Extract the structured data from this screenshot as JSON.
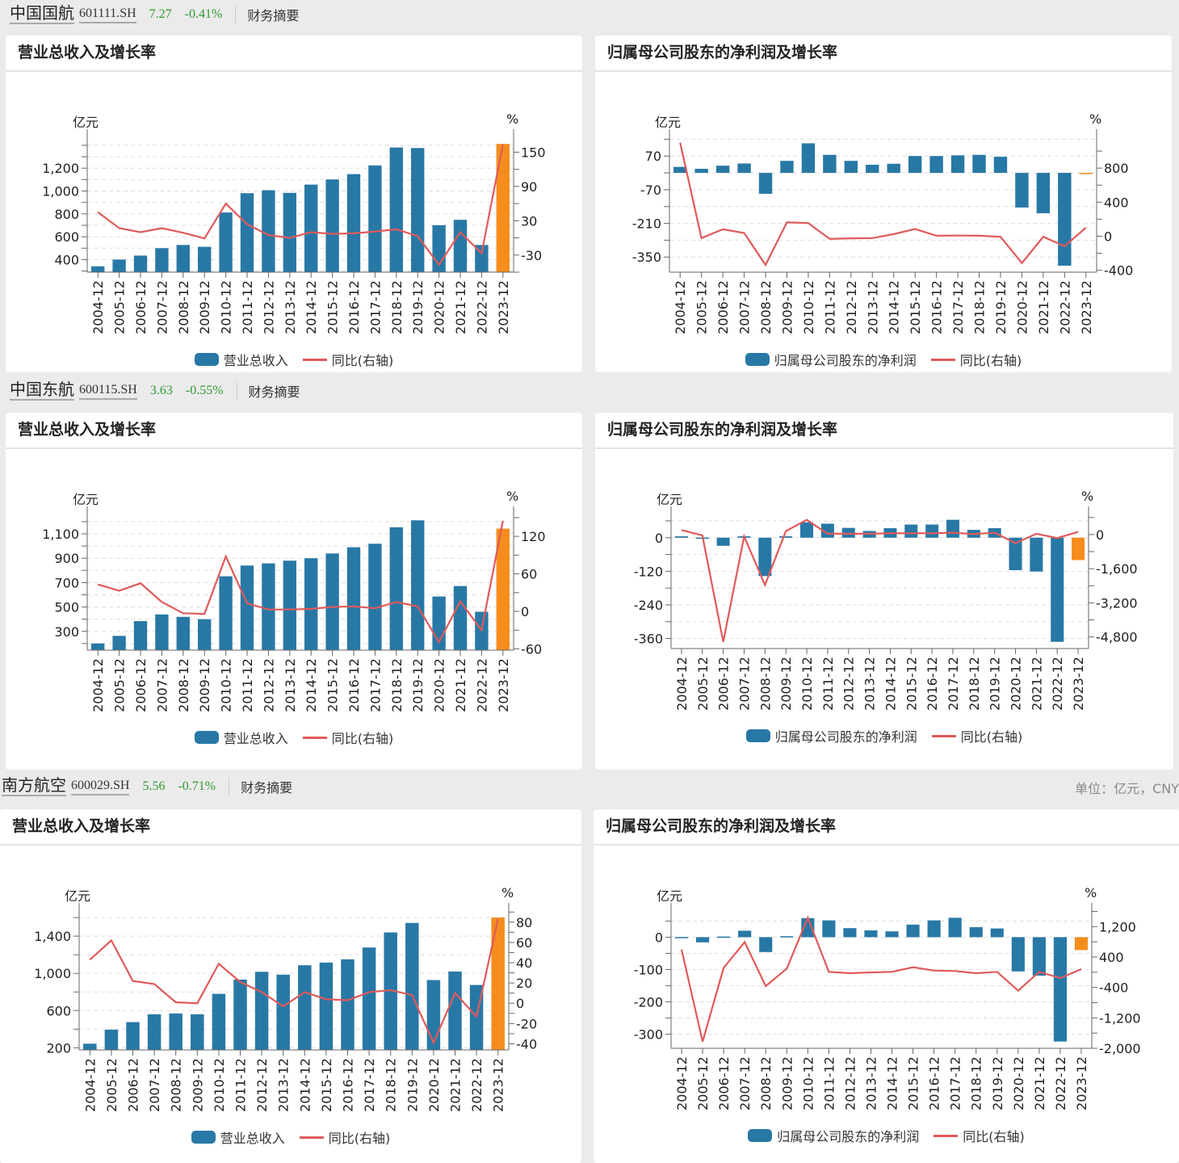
{
  "colors": {
    "bar": "#2878a6",
    "highlight": "#f58d1e",
    "line": "#e05a5a",
    "price": "#2e9a2e"
  },
  "unit_note": "单位：亿元，CNY",
  "stocks": [
    {
      "name": "中国国航",
      "code": "601111.SH",
      "price": "7.27",
      "change": "-0.41%",
      "link": "财务摘要"
    },
    {
      "name": "中国东航",
      "code": "600115.SH",
      "price": "3.63",
      "change": "-0.55%",
      "link": "财务摘要"
    },
    {
      "name": "南方航空",
      "code": "600029.SH",
      "price": "5.56",
      "change": "-0.71%",
      "link": "财务摘要"
    }
  ],
  "chart_data": [
    {
      "type": "bar+line",
      "title": "营业总收入及增长率",
      "ylabel": "亿元",
      "y2label": "%",
      "categories": [
        "2004-12",
        "2005-12",
        "2006-12",
        "2007-12",
        "2008-12",
        "2009-12",
        "2010-12",
        "2011-12",
        "2012-12",
        "2013-12",
        "2014-12",
        "2015-12",
        "2016-12",
        "2017-12",
        "2018-12",
        "2019-12",
        "2020-12",
        "2021-12",
        "2022-12",
        "2023-12"
      ],
      "bar_series": {
        "name": "营业总收入",
        "values": [
          341,
          400,
          435,
          500,
          528,
          512,
          812,
          981,
          1007,
          984,
          1056,
          1101,
          1148,
          1224,
          1381,
          1376,
          701,
          748,
          528,
          1412
        ]
      },
      "line_series": {
        "name": "同比(右轴)",
        "values": [
          45,
          17,
          10,
          17,
          9,
          -1,
          60,
          24,
          5,
          0,
          10,
          7,
          8,
          11,
          15,
          3,
          -47,
          10,
          -27,
          164
        ]
      },
      "ylim": [
        290,
        1470
      ],
      "yticks": [
        400,
        600,
        800,
        1000,
        1200
      ],
      "y2lim": [
        -60,
        176
      ],
      "y2ticks": [
        -30,
        30,
        90,
        150
      ],
      "highlight_last": true,
      "bar_base": "axis"
    },
    {
      "type": "bar+line",
      "title": "归属母公司股东的净利润及增长率",
      "ylabel": "亿元",
      "y2label": "%",
      "categories": [
        "2004-12",
        "2005-12",
        "2006-12",
        "2007-12",
        "2008-12",
        "2009-12",
        "2010-12",
        "2011-12",
        "2012-12",
        "2013-12",
        "2014-12",
        "2015-12",
        "2016-12",
        "2017-12",
        "2018-12",
        "2019-12",
        "2020-12",
        "2021-12",
        "2022-12",
        "2023-12"
      ],
      "bar_series": {
        "name": "归属母公司股东的净利润",
        "values": [
          25,
          17,
          30,
          39,
          -87,
          50,
          123,
          75,
          50,
          34,
          38,
          70,
          70,
          73,
          75,
          67,
          -144,
          -168,
          -386,
          -5
        ]
      },
      "line_series": {
        "name": "同比(右轴)",
        "values": [
          1099,
          -22,
          82,
          38,
          -337,
          164,
          154,
          -31,
          -25,
          -22,
          25,
          85,
          6,
          9,
          6,
          -6,
          -315,
          -6,
          -117,
          101
        ]
      },
      "ylim": [
        -413,
        148
      ],
      "yticks": [
        -350,
        -210,
        -70,
        70
      ],
      "y2lim": [
        -422,
        1162
      ],
      "y2ticks": [
        -400,
        0,
        400,
        800
      ],
      "highlight_last": true,
      "bar_base": "zero"
    },
    {
      "type": "bar+line",
      "title": "营业总收入及增长率",
      "ylabel": "亿元",
      "y2label": "%",
      "categories": [
        "2004-12",
        "2005-12",
        "2006-12",
        "2007-12",
        "2008-12",
        "2009-12",
        "2010-12",
        "2011-12",
        "2012-12",
        "2013-12",
        "2014-12",
        "2015-12",
        "2016-12",
        "2017-12",
        "2018-12",
        "2019-12",
        "2020-12",
        "2021-12",
        "2022-12",
        "2023-12"
      ],
      "bar_series": {
        "name": "营业总收入",
        "values": [
          201,
          263,
          384,
          439,
          419,
          400,
          752,
          840,
          858,
          880,
          900,
          939,
          990,
          1019,
          1154,
          1211,
          586,
          672,
          461,
          1143
        ]
      },
      "line_series": {
        "name": "同比(右轴)",
        "values": [
          43,
          33,
          45,
          15,
          -3,
          -4,
          88,
          13,
          3,
          3,
          4,
          7,
          8,
          5,
          15,
          8,
          -49,
          16,
          -30,
          145
        ]
      },
      "ylim": [
        146,
        1259
      ],
      "yticks": [
        300,
        500,
        700,
        900,
        1100
      ],
      "y2lim": [
        -62,
        155
      ],
      "y2ticks": [
        -60,
        0,
        60,
        120
      ],
      "highlight_last": true,
      "bar_base": "axis"
    },
    {
      "type": "bar+line",
      "title": "归属母公司股东的净利润及增长率",
      "ylabel": "亿元",
      "y2label": "%",
      "categories": [
        "2004-12",
        "2005-12",
        "2006-12",
        "2007-12",
        "2008-12",
        "2009-12",
        "2010-12",
        "2011-12",
        "2012-12",
        "2013-12",
        "2014-12",
        "2015-12",
        "2016-12",
        "2017-12",
        "2018-12",
        "2019-12",
        "2020-12",
        "2021-12",
        "2022-12",
        "2023-12"
      ],
      "bar_series": {
        "name": "归属母公司股东的净利润",
        "values": [
          5,
          0.5,
          -29,
          5,
          -137,
          5,
          55,
          50,
          35,
          24,
          34,
          47,
          47,
          64,
          28,
          34,
          -116,
          -121,
          -372,
          -80
        ]
      },
      "line_series": {
        "name": "同比(右轴)",
        "values": [
          214,
          -38,
          -5028,
          -88,
          -2363,
          163,
          691,
          38,
          38,
          38,
          63,
          63,
          63,
          88,
          25,
          88,
          -402,
          38,
          -163,
          126
        ]
      },
      "ylim": [
        -396,
        83
      ],
      "yticks": [
        -360,
        -240,
        -120,
        0
      ],
      "y2lim": [
        -5342,
        943
      ],
      "y2ticks": [
        -4800,
        -3200,
        -1600,
        0
      ],
      "highlight_last": true,
      "bar_base": "zero"
    },
    {
      "type": "bar+line",
      "title": "营业总收入及增长率",
      "ylabel": "亿元",
      "y2label": "%",
      "categories": [
        "2004-12",
        "2005-12",
        "2006-12",
        "2007-12",
        "2008-12",
        "2009-12",
        "2010-12",
        "2011-12",
        "2012-12",
        "2013-12",
        "2014-12",
        "2015-12",
        "2016-12",
        "2017-12",
        "2018-12",
        "2019-12",
        "2020-12",
        "2021-12",
        "2022-12",
        "2023-12"
      ],
      "bar_series": {
        "name": "营业总收入",
        "values": [
          244,
          395,
          476,
          560,
          569,
          560,
          780,
          933,
          1017,
          986,
          1087,
          1116,
          1151,
          1278,
          1440,
          1542,
          928,
          1020,
          875,
          1600
        ]
      },
      "line_series": {
        "name": "同比(右轴)",
        "values": [
          43,
          62,
          22,
          19,
          1,
          0,
          39,
          21,
          11,
          -3,
          11,
          4,
          3,
          11,
          13,
          8,
          -39,
          10,
          -13,
          83
        ]
      },
      "ylim": [
        177,
        1670
      ],
      "yticks": [
        200,
        600,
        1000,
        1400
      ],
      "y2lim": [
        -46,
        91
      ],
      "y2ticks": [
        -40,
        -20,
        0,
        20,
        40,
        60,
        80
      ],
      "highlight_last": true,
      "bar_base": "axis"
    },
    {
      "type": "bar+line",
      "title": "归属母公司股东的净利润及增长率",
      "ylabel": "亿元",
      "y2label": "%",
      "categories": [
        "2004-12",
        "2005-12",
        "2006-12",
        "2007-12",
        "2008-12",
        "2009-12",
        "2010-12",
        "2011-12",
        "2012-12",
        "2013-12",
        "2014-12",
        "2015-12",
        "2016-12",
        "2017-12",
        "2018-12",
        "2019-12",
        "2020-12",
        "2021-12",
        "2022-12",
        "2023-12"
      ],
      "bar_series": {
        "name": "归属母公司股东的净利润",
        "values": [
          0.5,
          -16,
          2,
          20,
          -46,
          3,
          59,
          52,
          28,
          21,
          18,
          39,
          52,
          60,
          31,
          27,
          -106,
          -119,
          -323,
          -40
        ]
      },
      "line_series": {
        "name": "同比(右轴)",
        "values": [
          598,
          -1823,
          117,
          796,
          -365,
          96,
          1434,
          11,
          -25,
          -4,
          11,
          131,
          46,
          32,
          -25,
          11,
          -485,
          11,
          -152,
          82
        ]
      },
      "ylim": [
        -344,
        81
      ],
      "yticks": [
        -300,
        -200,
        -100,
        0
      ],
      "y2lim": [
        -2000,
        1611
      ],
      "y2ticks": [
        -2000,
        -1200,
        -400,
        400,
        1200
      ],
      "highlight_last": true,
      "bar_base": "zero"
    }
  ]
}
